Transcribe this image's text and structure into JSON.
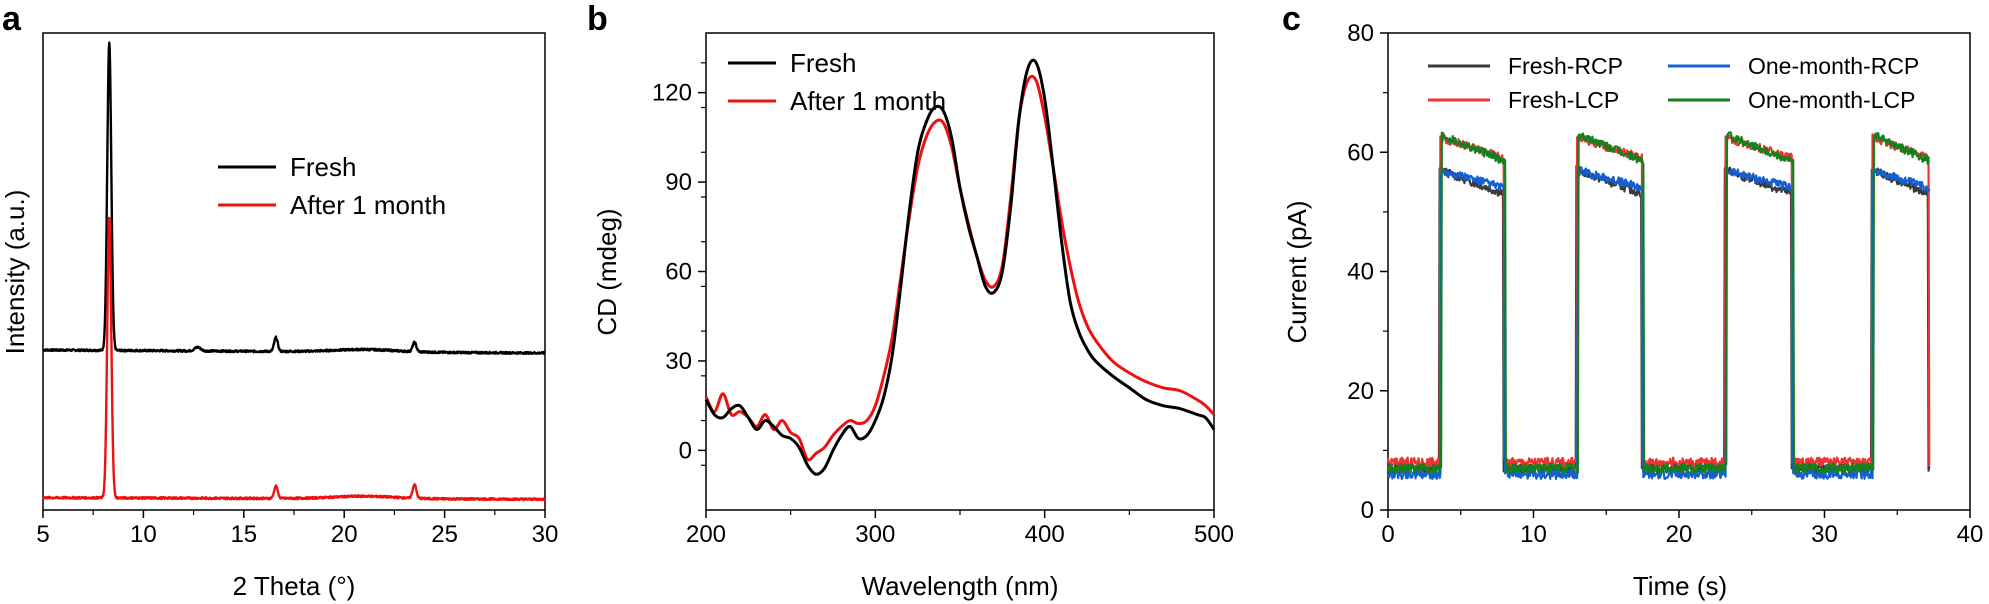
{
  "figure": {
    "panels": [
      {
        "letter": "a",
        "chart_type": "line",
        "xlabel": "2 Theta (°)",
        "ylabel": "Intensity (a.u.)",
        "xlim": [
          5,
          30
        ],
        "xticks": [
          5,
          10,
          15,
          20,
          25,
          30
        ],
        "yticks": [],
        "legend": [
          {
            "name": "Fresh",
            "color": "#000000"
          },
          {
            "name": "After 1 month",
            "color": "#ee1111"
          }
        ]
      },
      {
        "letter": "b",
        "chart_type": "line",
        "xlabel": "Wavelength (nm)",
        "ylabel": "CD (mdeg)",
        "xlim": [
          200,
          500
        ],
        "ylim": [
          -20,
          140
        ],
        "xticks": [
          200,
          300,
          400,
          500
        ],
        "yticks": [
          0,
          30,
          60,
          90,
          120
        ],
        "legend": [
          {
            "name": "Fresh",
            "color": "#000000"
          },
          {
            "name": "After 1 month",
            "color": "#ee1111"
          }
        ]
      },
      {
        "letter": "c",
        "chart_type": "line",
        "xlabel": "Time (s)",
        "ylabel": "Current (pA)",
        "xlim": [
          0,
          40
        ],
        "ylim": [
          0,
          80
        ],
        "xticks": [
          0,
          10,
          20,
          30,
          40
        ],
        "yticks": [
          0,
          20,
          40,
          60,
          80
        ],
        "legend": [
          {
            "name": "Fresh-RCP",
            "color": "#3a3a3a"
          },
          {
            "name": "Fresh-LCP",
            "color": "#ee3333"
          },
          {
            "name": "One-month-RCP",
            "color": "#1560d0"
          },
          {
            "name": "One-month-LCP",
            "color": "#15801e"
          }
        ]
      }
    ]
  },
  "chart_data": [
    {
      "type": "line",
      "title": "a",
      "xlabel": "2 Theta (°)",
      "ylabel": "Intensity (a.u.)",
      "xlim": [
        5,
        30
      ],
      "series": [
        {
          "name": "Fresh",
          "color": "#000000",
          "baseline": 0.42,
          "drift": -0.01,
          "peaks": [
            [
              8.3,
              1.0,
              0.1
            ],
            [
              12.7,
              0.012,
              0.15
            ],
            [
              16.6,
              0.045,
              0.09
            ],
            [
              21.0,
              0.008,
              1.5
            ],
            [
              23.5,
              0.03,
              0.09
            ]
          ]
        },
        {
          "name": "After 1 month",
          "color": "#ee1111",
          "baseline": -0.06,
          "drift": -0.005,
          "peaks": [
            [
              8.3,
              0.91,
              0.1
            ],
            [
              16.6,
              0.04,
              0.09
            ],
            [
              21.0,
              0.008,
              1.5
            ],
            [
              23.5,
              0.045,
              0.09
            ]
          ]
        }
      ]
    },
    {
      "type": "line",
      "title": "b",
      "xlabel": "Wavelength (nm)",
      "ylabel": "CD (mdeg)",
      "xlim": [
        200,
        500
      ],
      "ylim": [
        -20,
        140
      ],
      "series": [
        {
          "name": "Fresh",
          "color": "#000000",
          "x": [
            200,
            205,
            210,
            215,
            220,
            225,
            230,
            235,
            240,
            245,
            250,
            255,
            260,
            265,
            270,
            275,
            280,
            285,
            290,
            295,
            300,
            305,
            310,
            315,
            320,
            325,
            330,
            335,
            340,
            345,
            350,
            355,
            360,
            365,
            370,
            375,
            380,
            385,
            390,
            395,
            400,
            405,
            410,
            415,
            420,
            425,
            430,
            440,
            450,
            460,
            470,
            480,
            490,
            495,
            500
          ],
          "y": [
            17,
            12,
            11,
            14,
            15,
            11,
            7,
            10,
            8,
            5,
            4,
            1,
            -5,
            -8,
            -6,
            0,
            5,
            8,
            4,
            5,
            10,
            18,
            32,
            55,
            80,
            100,
            110,
            115,
            114,
            105,
            88,
            75,
            65,
            55,
            53,
            60,
            82,
            112,
            128,
            130,
            118,
            95,
            70,
            50,
            40,
            34,
            30,
            25,
            21,
            17,
            15,
            14,
            12,
            11,
            7
          ]
        },
        {
          "name": "After 1 month",
          "color": "#ee1111",
          "x": [
            200,
            205,
            210,
            215,
            220,
            225,
            230,
            235,
            240,
            245,
            250,
            255,
            260,
            265,
            270,
            275,
            280,
            285,
            290,
            295,
            300,
            305,
            310,
            315,
            320,
            325,
            330,
            335,
            340,
            345,
            350,
            355,
            360,
            365,
            370,
            375,
            380,
            385,
            390,
            395,
            400,
            405,
            410,
            415,
            420,
            425,
            430,
            440,
            450,
            460,
            470,
            480,
            490,
            495,
            500
          ],
          "y": [
            18,
            13,
            19,
            12,
            13,
            11,
            8,
            12,
            7,
            10,
            6,
            4,
            -3,
            -1,
            1,
            5,
            8,
            10,
            9,
            10,
            15,
            25,
            38,
            58,
            78,
            95,
            105,
            110,
            110,
            102,
            88,
            76,
            65,
            57,
            55,
            62,
            85,
            112,
            124,
            124,
            112,
            95,
            77,
            62,
            50,
            42,
            37,
            30,
            26,
            23,
            21,
            20,
            17,
            15,
            12
          ]
        }
      ]
    },
    {
      "type": "line",
      "title": "c",
      "xlabel": "Time (s)",
      "ylabel": "Current (pA)",
      "xlim": [
        0,
        40
      ],
      "ylim": [
        0,
        80
      ],
      "on_intervals": [
        [
          3.6,
          8.0
        ],
        [
          13.0,
          17.5
        ],
        [
          23.2,
          27.8
        ],
        [
          33.3,
          37.2
        ]
      ],
      "series": [
        {
          "name": "Fresh-RCP",
          "color": "#3a3a3a",
          "low": 7.0,
          "high_start": 57.0,
          "high_end": 53.0,
          "t_end": 37.2
        },
        {
          "name": "Fresh-LCP",
          "color": "#ee3333",
          "low": 8.0,
          "high_start": 62.5,
          "high_end": 59.0,
          "t_end": 37.2
        },
        {
          "name": "One-month-RCP",
          "color": "#1560d0",
          "low": 6.0,
          "high_start": 57.0,
          "high_end": 54.0,
          "t_end": 37.2
        },
        {
          "name": "One-month-LCP",
          "color": "#15801e",
          "low": 7.0,
          "high_start": 63.0,
          "high_end": 58.5,
          "t_end": 37.2
        }
      ]
    }
  ]
}
